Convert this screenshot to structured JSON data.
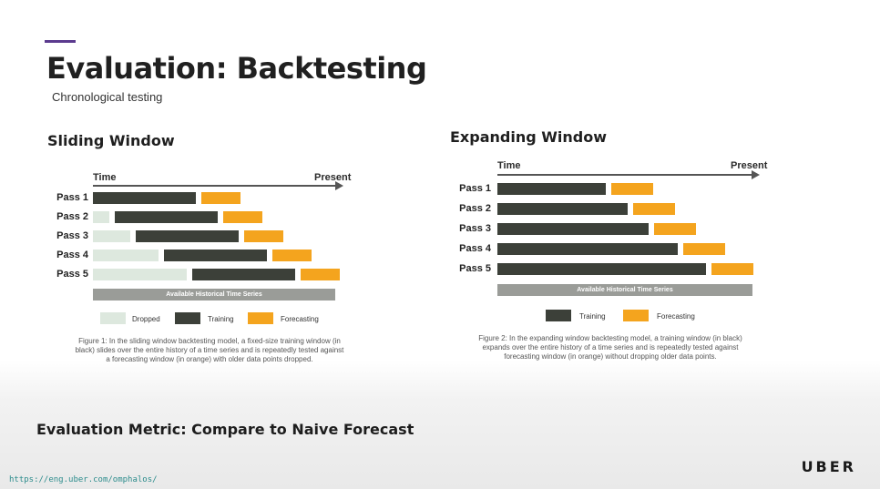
{
  "slide": {
    "title": "Evaluation: Backtesting",
    "subtitle": "Chronological testing",
    "metric": "Evaluation Metric: Compare to Naive Forecast",
    "url": "https://eng.uber.com/omphalos/",
    "logo": "UBER",
    "accent_color": "#5b3a8e"
  },
  "colors": {
    "dropped": "#dde8de",
    "training": "#3c4039",
    "forecasting": "#f4a41e",
    "history": "#9a9c98"
  },
  "sliding": {
    "title": "Sliding Window",
    "time_label": "Time",
    "present_label": "Present",
    "history_label": "Available Historical Time Series",
    "legend": {
      "dropped": "Dropped",
      "training": "Training",
      "forecasting": "Forecasting"
    },
    "caption": [
      "Figure 1: In the sliding window backtesting model, a fixed-size training window (in",
      "black) slides over the entire history of a time series and is repeatedly tested against",
      "a forecasting window (in orange) with older data points dropped."
    ],
    "passes": [
      {
        "label": "Pass 1",
        "dropped": 0,
        "training": 113,
        "forecasting": 43
      },
      {
        "label": "Pass 2",
        "dropped": 18,
        "training": 113,
        "forecasting": 43
      },
      {
        "label": "Pass 3",
        "dropped": 41,
        "training": 113,
        "forecasting": 43
      },
      {
        "label": "Pass 4",
        "dropped": 72,
        "training": 113,
        "forecasting": 43
      },
      {
        "label": "Pass 5",
        "dropped": 103,
        "training": 113,
        "forecasting": 43
      }
    ]
  },
  "expanding": {
    "title": "Expanding Window",
    "time_label": "Time",
    "present_label": "Present",
    "history_label": "Available Historical Time Series",
    "legend": {
      "training": "Training",
      "forecasting": "Forecasting"
    },
    "caption": [
      "Figure 2: In the expanding window backtesting model, a training window (in black)",
      "expands over the entire history of a time series and is repeatedly tested against",
      "forecasting window (in orange) without dropping older data points."
    ],
    "passes": [
      {
        "label": "Pass 1",
        "training": 119,
        "forecasting": 46
      },
      {
        "label": "Pass 2",
        "training": 143,
        "forecasting": 46
      },
      {
        "label": "Pass 3",
        "training": 166,
        "forecasting": 46
      },
      {
        "label": "Pass 4",
        "training": 198,
        "forecasting": 46
      },
      {
        "label": "Pass 5",
        "training": 229,
        "forecasting": 46
      }
    ]
  }
}
